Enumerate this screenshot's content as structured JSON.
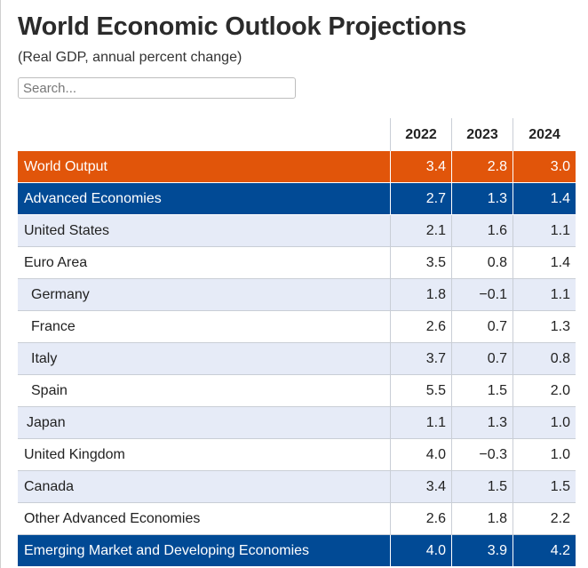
{
  "title": "World Economic Outlook Projections",
  "subtitle": "(Real GDP, annual percent change)",
  "search": {
    "placeholder": "Search..."
  },
  "colors": {
    "orange": "#e1550a",
    "blue": "#014a95",
    "light_row": "#e6ebf7"
  },
  "table": {
    "headers": [
      "",
      "2022",
      "2023",
      "2024"
    ],
    "rows": [
      {
        "name": "World Output",
        "v2022": "3.4",
        "v2023": "2.8",
        "v2024": "3.0"
      },
      {
        "name": "Advanced Economies",
        "v2022": "2.7",
        "v2023": "1.3",
        "v2024": "1.4"
      },
      {
        "name": "United States",
        "v2022": "2.1",
        "v2023": "1.6",
        "v2024": "1.1"
      },
      {
        "name": "Euro Area",
        "v2022": "3.5",
        "v2023": "0.8",
        "v2024": "1.4"
      },
      {
        "name": "Germany",
        "v2022": "1.8",
        "v2023": "−0.1",
        "v2024": "1.1"
      },
      {
        "name": "France",
        "v2022": "2.6",
        "v2023": "0.7",
        "v2024": "1.3"
      },
      {
        "name": "Italy",
        "v2022": "3.7",
        "v2023": "0.7",
        "v2024": "0.8"
      },
      {
        "name": "Spain",
        "v2022": "5.5",
        "v2023": "1.5",
        "v2024": "2.0"
      },
      {
        "name": "Japan",
        "v2022": "1.1",
        "v2023": "1.3",
        "v2024": "1.0"
      },
      {
        "name": "United Kingdom",
        "v2022": "4.0",
        "v2023": "−0.3",
        "v2024": "1.0"
      },
      {
        "name": "Canada",
        "v2022": "3.4",
        "v2023": "1.5",
        "v2024": "1.5"
      },
      {
        "name": "Other Advanced Economies",
        "v2022": "2.6",
        "v2023": "1.8",
        "v2024": "2.2"
      },
      {
        "name": "Emerging Market and Developing Economies",
        "v2022": "4.0",
        "v2023": "3.9",
        "v2024": "4.2"
      }
    ]
  }
}
